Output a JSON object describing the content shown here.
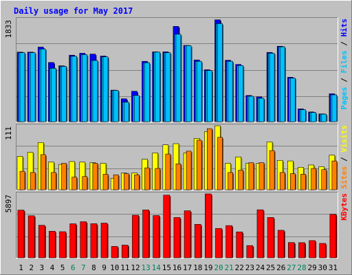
{
  "chart_data": {
    "type": "bar",
    "title": "Daily usage for May 2017",
    "categories": [
      "1",
      "2",
      "3",
      "4",
      "5",
      "6",
      "7",
      "8",
      "9",
      "10",
      "11",
      "12",
      "13",
      "14",
      "15",
      "16",
      "17",
      "18",
      "19",
      "20",
      "21",
      "22",
      "23",
      "24",
      "25",
      "26",
      "27",
      "28",
      "29",
      "30",
      "31"
    ],
    "weekend_days": [
      "6",
      "7",
      "13",
      "14",
      "20",
      "21",
      "27",
      "28"
    ],
    "panels": [
      {
        "id": "hits",
        "ymax": 1833,
        "ymax_label": "1833",
        "side_labels": [
          "Pages",
          "Files",
          "Hits"
        ],
        "series": [
          {
            "name": "Hits",
            "values": [
              1245,
              1245,
              1335,
              1060,
              1000,
              1190,
              1225,
              1210,
              1175,
              565,
              410,
              545,
              1080,
              1250,
              1250,
              1705,
              1365,
              1105,
              930,
              1823,
              1100,
              1025,
              470,
              445,
              1240,
              1350,
              795,
              230,
              175,
              140,
              500
            ]
          },
          {
            "name": "Files",
            "values": [
              1235,
              1235,
              1300,
              955,
              990,
              1170,
              1200,
              1095,
              1160,
              560,
              350,
              470,
              1055,
              1245,
              1235,
              1565,
              1360,
              1080,
              915,
              1755,
              1080,
              1005,
              455,
              420,
              1225,
              1340,
              780,
              215,
              165,
              135,
              480
            ]
          },
          {
            "name": "Pages",
            "values": [
              1235,
              1235,
              1300,
              955,
              990,
              1170,
              1200,
              1095,
              1160,
              560,
              350,
              470,
              1055,
              1245,
              1235,
              1565,
              1360,
              1080,
              915,
              1755,
              1080,
              1005,
              455,
              420,
              1225,
              1340,
              780,
              215,
              165,
              135,
              480
            ]
          }
        ]
      },
      {
        "id": "visits",
        "ymax": 111,
        "ymax_label": "111",
        "side_labels": [
          "Sites",
          "Visits"
        ],
        "series": [
          {
            "name": "Visits",
            "values": [
              58,
              65,
              82,
              48,
              44,
              49,
              48,
              47,
              46,
              20,
              29,
              29,
              53,
              64,
              78,
              80,
              64,
              89,
              101,
              111,
              46,
              57,
              46,
              46,
              83,
              51,
              50,
              39,
              43,
              40,
              60
            ]
          },
          {
            "name": "Sites",
            "values": [
              32,
              30,
              61,
              30,
              46,
              22,
              23,
              46,
              27,
              26,
              28,
              26,
              38,
              37,
              62,
              45,
              67,
              86,
              106,
              91,
              30,
              34,
              47,
              47,
              68,
              30,
              28,
              27,
              37,
              35,
              50
            ]
          }
        ]
      },
      {
        "id": "kbytes",
        "ymax": 5897,
        "ymax_label": "5897",
        "side_labels": [
          "KBytes"
        ],
        "series": [
          {
            "name": "KBytes",
            "values": [
              4400,
              3880,
              3000,
              2450,
              2410,
              3140,
              3330,
              3150,
              3200,
              1050,
              1170,
              3930,
              4420,
              3900,
              5780,
              3720,
              4340,
              3090,
              5897,
              2710,
              2970,
              2390,
              1130,
              4430,
              3720,
              2540,
              1410,
              1400,
              1590,
              1330,
              4020
            ]
          }
        ]
      }
    ]
  },
  "colors": {
    "background": "#c0c0c0",
    "plot_background": "#c0c0c0",
    "title": "#0000ff",
    "hits": "#0000ff",
    "files": "#00c0ff",
    "pages": "#00c0ff",
    "visits": "#ffff00",
    "sites": "#ff8000",
    "kbytes": "#ff0000",
    "axis_label": "#000000",
    "weekend_label": "#00805c"
  }
}
